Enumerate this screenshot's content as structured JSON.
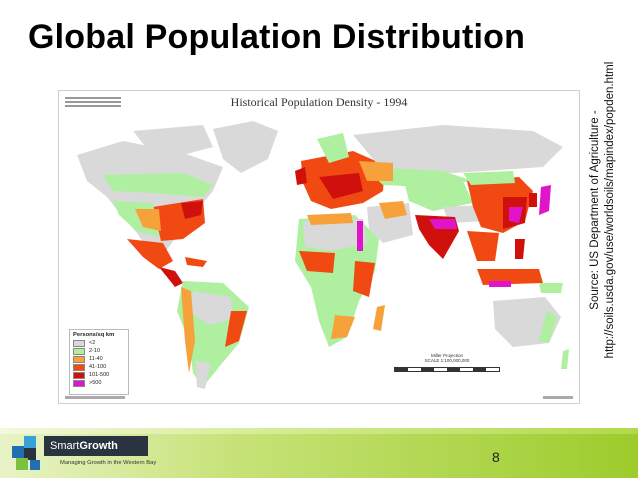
{
  "slide": {
    "title": "Global Population Distribution",
    "page_number": "8"
  },
  "source": {
    "line1": "Source: US Department of Agriculture -",
    "line2": "http://soils.usda.gov/use/worldsoils/mapindex/popden.html"
  },
  "map": {
    "title": "Historical Population Density - 1994",
    "legend": {
      "title": "Persons/sq km",
      "entries": [
        {
          "label": "<2",
          "color": "#d9d9d9"
        },
        {
          "label": "2-10",
          "color": "#aef0a0"
        },
        {
          "label": "11-40",
          "color": "#f6a13a"
        },
        {
          "label": "41-100",
          "color": "#f04a12"
        },
        {
          "label": "101-500",
          "color": "#d0100c"
        },
        {
          "label": ">500",
          "color": "#e014c8"
        }
      ]
    },
    "scalebar": {
      "title": "Miller Projection",
      "subtitle": "SCALE 1:100,000,000"
    },
    "colors": {
      "ocean": "#ffffff",
      "very_low": "#d9d9d9",
      "low": "#aef0a0",
      "medium": "#f6a13a",
      "high": "#f04a12",
      "very_high": "#d0100c",
      "extreme": "#e014c8"
    }
  },
  "branding": {
    "logo_brand": "SmartGrowth",
    "logo_brand_part1": "Smart",
    "logo_brand_part2": "Growth",
    "logo_tagline": "Managing Growth in the Western Bay",
    "band_colors": [
      "#e9f3c8",
      "#9dcc2c"
    ]
  }
}
